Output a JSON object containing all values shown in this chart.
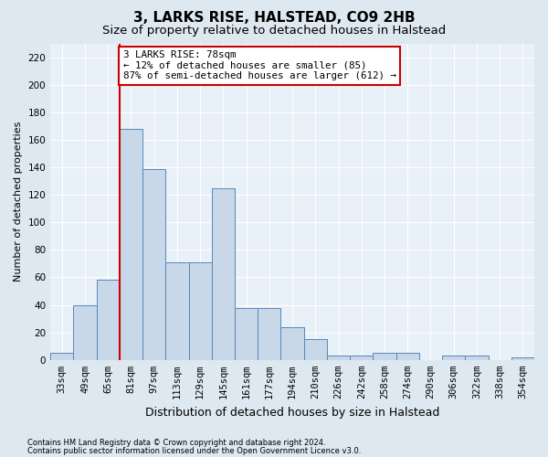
{
  "title": "3, LARKS RISE, HALSTEAD, CO9 2HB",
  "subtitle": "Size of property relative to detached houses in Halstead",
  "xlabel": "Distribution of detached houses by size in Halstead",
  "ylabel": "Number of detached properties",
  "footnote1": "Contains HM Land Registry data © Crown copyright and database right 2024.",
  "footnote2": "Contains public sector information licensed under the Open Government Licence v3.0.",
  "categories": [
    "33sqm",
    "49sqm",
    "65sqm",
    "81sqm",
    "97sqm",
    "113sqm",
    "129sqm",
    "145sqm",
    "161sqm",
    "177sqm",
    "194sqm",
    "210sqm",
    "226sqm",
    "242sqm",
    "258sqm",
    "274sqm",
    "290sqm",
    "306sqm",
    "322sqm",
    "338sqm",
    "354sqm"
  ],
  "values": [
    5,
    40,
    58,
    168,
    139,
    71,
    71,
    125,
    38,
    38,
    24,
    15,
    3,
    3,
    5,
    5,
    0,
    3,
    3,
    0,
    2
  ],
  "bar_color": "#c8d8e8",
  "bar_edge_color": "#5588bb",
  "vline_color": "#cc0000",
  "vline_pos": 2.5,
  "annotation_text": "3 LARKS RISE: 78sqm\n← 12% of detached houses are smaller (85)\n87% of semi-detached houses are larger (612) →",
  "annotation_box_facecolor": "#ffffff",
  "annotation_box_edgecolor": "#cc0000",
  "ylim": [
    0,
    230
  ],
  "yticks": [
    0,
    20,
    40,
    60,
    80,
    100,
    120,
    140,
    160,
    180,
    200,
    220
  ],
  "bg_color": "#dde8f0",
  "plot_bg_color": "#e8f0f8",
  "title_fontsize": 11,
  "subtitle_fontsize": 9.5,
  "ylabel_fontsize": 8,
  "xlabel_fontsize": 9,
  "tick_fontsize": 7.5,
  "annot_fontsize": 7.8,
  "footnote_fontsize": 6
}
